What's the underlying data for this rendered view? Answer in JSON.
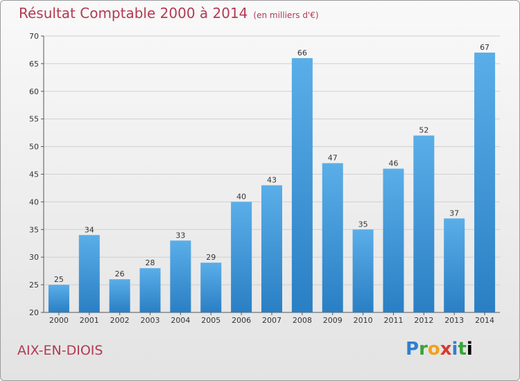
{
  "header": {
    "title": "Résultat Comptable 2000 à 2014",
    "unit": "(en milliers d'€)"
  },
  "footer": {
    "commune": "AIX-EN-DIOIS",
    "logo": [
      "P",
      "r",
      "o",
      "x",
      "i",
      "t",
      "i"
    ]
  },
  "colors": {
    "bar_top": "#5aaee8",
    "bar_bottom": "#2a7fc4",
    "title": "#b23a52"
  },
  "chart_data": {
    "type": "bar",
    "title": "Résultat Comptable 2000 à 2014",
    "subtitle": "(en milliers d'€)",
    "categories": [
      "2000",
      "2001",
      "2002",
      "2003",
      "2004",
      "2005",
      "2006",
      "2007",
      "2008",
      "2009",
      "2010",
      "2011",
      "2012",
      "2013",
      "2014"
    ],
    "values": [
      25,
      34,
      26,
      28,
      33,
      29,
      40,
      43,
      66,
      47,
      35,
      46,
      52,
      37,
      67
    ],
    "ylim": [
      20,
      70
    ],
    "yticks": [
      20,
      25,
      30,
      35,
      40,
      45,
      50,
      55,
      60,
      65,
      70
    ],
    "grid": true
  }
}
